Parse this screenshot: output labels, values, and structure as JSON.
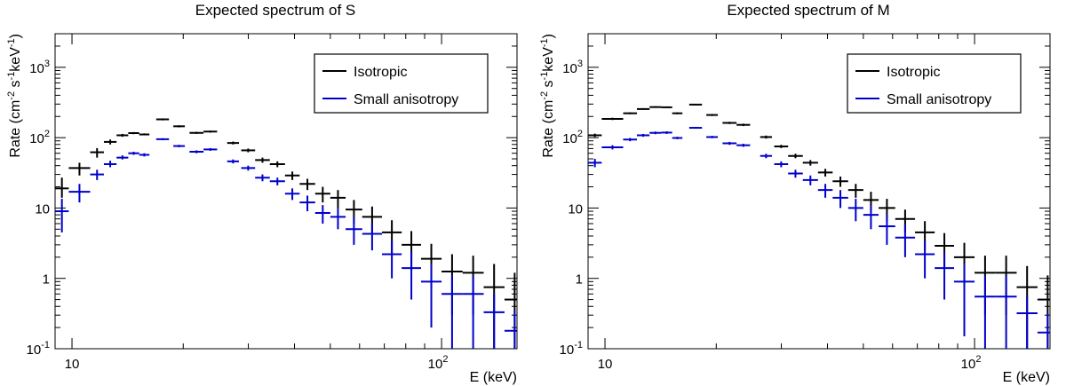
{
  "chart_data": [
    {
      "type": "scatter",
      "title": "Expected spectrum of S",
      "xlabel": "E (keV)",
      "ylabel": {
        "main": "Rate (cm",
        "p1": "-2",
        "s1": " s",
        "p2": "-1",
        "s2": "keV",
        "p3": "-1",
        "close": ")"
      },
      "xscale": "log",
      "yscale": "log",
      "xlim": [
        9,
        160
      ],
      "ylim": [
        0.1,
        3000
      ],
      "xticks": [
        {
          "label": "10"
        },
        {
          "label": "10",
          "exp": "2"
        }
      ],
      "yticks": [
        {
          "label": "10",
          "exp": "-1"
        },
        {
          "label": "1"
        },
        {
          "label": "10"
        },
        {
          "label": "10",
          "exp": "2"
        },
        {
          "label": "10",
          "exp": "3"
        }
      ],
      "legend": {
        "position": "top-right",
        "entries": [
          {
            "label": "Isotropic",
            "color": "#000000"
          },
          {
            "label": "Small anisotropy",
            "color": "#0000cc"
          }
        ]
      },
      "bins": [
        [
          9.0,
          9.8
        ],
        [
          9.8,
          11.2
        ],
        [
          11.2,
          12.2
        ],
        [
          12.2,
          13.2
        ],
        [
          13.2,
          14.2
        ],
        [
          14.2,
          15.2
        ],
        [
          15.2,
          16.2
        ],
        [
          16.9,
          18.3
        ],
        [
          18.8,
          20.2
        ],
        [
          20.8,
          22.7
        ],
        [
          22.7,
          24.7
        ],
        [
          26.3,
          28.3
        ],
        [
          28.7,
          31.3
        ],
        [
          31.3,
          34.3
        ],
        [
          34.3,
          37.7
        ],
        [
          37.7,
          41.3
        ],
        [
          41.3,
          45.5
        ],
        [
          45.5,
          50
        ],
        [
          50,
          55
        ],
        [
          55,
          61
        ],
        [
          61,
          69
        ],
        [
          69,
          78
        ],
        [
          78,
          88
        ],
        [
          88,
          100
        ],
        [
          100,
          114
        ],
        [
          114,
          130
        ],
        [
          130,
          148
        ],
        [
          148,
          168
        ]
      ],
      "series": [
        {
          "name": "Isotropic",
          "color": "#000000",
          "values": [
            19,
            37,
            62,
            87,
            108,
            116,
            111,
            182,
            145,
            117,
            122,
            84,
            66,
            48,
            42,
            29,
            22,
            16,
            14,
            9.5,
            7.5,
            4.5,
            3,
            1.9,
            1.25,
            1.2,
            0.75,
            0.5
          ],
          "errors": [
            [
              14,
              27
            ],
            [
              29,
              44
            ],
            [
              52,
              71
            ],
            [
              80,
              94
            ],
            [
              103,
              113
            ],
            [
              112,
              120
            ],
            [
              108,
              115
            ],
            [
              176,
              188
            ],
            [
              140,
              150
            ],
            [
              113,
              121
            ],
            [
              118,
              126
            ],
            [
              80,
              88
            ],
            [
              62,
              70
            ],
            [
              44,
              52
            ],
            [
              38,
              46
            ],
            [
              25,
              33
            ],
            [
              18,
              26
            ],
            [
              12,
              20
            ],
            [
              10,
              18
            ],
            [
              6,
              13
            ],
            [
              4.5,
              10.5
            ],
            [
              2.3,
              6.7
            ],
            [
              1.3,
              4.7
            ],
            [
              0.7,
              3.1
            ],
            [
              0.3,
              2.2
            ],
            [
              0.3,
              2.1
            ],
            [
              0.1,
              1.6
            ],
            [
              0.1,
              1.2
            ]
          ]
        },
        {
          "name": "Small anisotropy",
          "color": "#0000cc",
          "values": [
            9,
            17,
            30,
            42,
            52,
            60,
            57,
            95,
            76,
            63,
            68,
            46,
            37,
            27,
            24,
            16,
            12,
            8.5,
            7.5,
            5,
            4.3,
            2.2,
            1.4,
            0.9,
            0.6,
            0.6,
            0.33,
            0.18
          ],
          "errors": [
            [
              4.5,
              13.5
            ],
            [
              12,
              22
            ],
            [
              25,
              35
            ],
            [
              38,
              47
            ],
            [
              49,
              56
            ],
            [
              57,
              63
            ],
            [
              54,
              60
            ],
            [
              92,
              98
            ],
            [
              73,
              79
            ],
            [
              60,
              66
            ],
            [
              65,
              71
            ],
            [
              43,
              49
            ],
            [
              34,
              40
            ],
            [
              24,
              30
            ],
            [
              21,
              27
            ],
            [
              13,
              19
            ],
            [
              9,
              15
            ],
            [
              6,
              11
            ],
            [
              5,
              10
            ],
            [
              3,
              7.5
            ],
            [
              2.5,
              6.1
            ],
            [
              1,
              3.4
            ],
            [
              0.5,
              2.4
            ],
            [
              0.2,
              1.6
            ],
            [
              0.1,
              1.1
            ],
            [
              0.1,
              1.1
            ],
            [
              0.1,
              0.6
            ],
            [
              0.1,
              0.35
            ]
          ]
        }
      ]
    },
    {
      "type": "scatter",
      "title": "Expected spectrum of M",
      "xlabel": "E (keV)",
      "ylabel": {
        "main": "Rate (cm",
        "p1": "-2",
        "s1": " s",
        "p2": "-1",
        "s2": "keV",
        "p3": "-1",
        "close": ")"
      },
      "xscale": "log",
      "yscale": "log",
      "xlim": [
        9,
        160
      ],
      "ylim": [
        0.1,
        3000
      ],
      "xticks": [
        {
          "label": "10"
        },
        {
          "label": "10",
          "exp": "2"
        }
      ],
      "yticks": [
        {
          "label": "10",
          "exp": "-1"
        },
        {
          "label": "1"
        },
        {
          "label": "10"
        },
        {
          "label": "10",
          "exp": "2"
        },
        {
          "label": "10",
          "exp": "3"
        }
      ],
      "legend": {
        "position": "top-right",
        "entries": [
          {
            "label": "Isotropic",
            "color": "#000000"
          },
          {
            "label": "Small anisotropy",
            "color": "#0000cc"
          }
        ]
      },
      "bins": [
        [
          9.0,
          9.8
        ],
        [
          9.8,
          11.2
        ],
        [
          11.2,
          12.2
        ],
        [
          12.2,
          13.2
        ],
        [
          13.2,
          14.2
        ],
        [
          14.2,
          15.2
        ],
        [
          15.2,
          16.2
        ],
        [
          16.9,
          18.3
        ],
        [
          18.8,
          20.2
        ],
        [
          20.8,
          22.7
        ],
        [
          22.7,
          24.7
        ],
        [
          26.3,
          28.3
        ],
        [
          28.7,
          31.3
        ],
        [
          31.3,
          34.3
        ],
        [
          34.3,
          37.7
        ],
        [
          37.7,
          41.3
        ],
        [
          41.3,
          45.5
        ],
        [
          45.5,
          50
        ],
        [
          50,
          55
        ],
        [
          55,
          61
        ],
        [
          61,
          69
        ],
        [
          69,
          78
        ],
        [
          78,
          88
        ],
        [
          88,
          100
        ],
        [
          100,
          114
        ],
        [
          114,
          130
        ],
        [
          130,
          148
        ],
        [
          148,
          168
        ]
      ],
      "series": [
        {
          "name": "Isotropic",
          "color": "#000000",
          "values": [
            108,
            185,
            222,
            255,
            272,
            270,
            222,
            295,
            210,
            162,
            152,
            102,
            75,
            55,
            44,
            32,
            24,
            18,
            13,
            10,
            7,
            4.5,
            2.9,
            2,
            1.2,
            1.2,
            0.75,
            0.5
          ],
          "errors": [
            [
              102,
              114
            ],
            [
              178,
              192
            ],
            [
              215,
              229
            ],
            [
              248,
              262
            ],
            [
              265,
              279
            ],
            [
              263,
              277
            ],
            [
              215,
              229
            ],
            [
              288,
              302
            ],
            [
              203,
              217
            ],
            [
              156,
              168
            ],
            [
              146,
              158
            ],
            [
              97,
              107
            ],
            [
              71,
              79
            ],
            [
              51,
              59
            ],
            [
              40,
              48
            ],
            [
              28,
              36
            ],
            [
              20,
              28
            ],
            [
              14,
              22
            ],
            [
              9,
              17
            ],
            [
              6.5,
              13.5
            ],
            [
              4.5,
              9.5
            ],
            [
              2.5,
              6.5
            ],
            [
              1.4,
              4.4
            ],
            [
              0.8,
              3.2
            ],
            [
              0.3,
              2.1
            ],
            [
              0.3,
              2.1
            ],
            [
              0.1,
              1.5
            ],
            [
              0.1,
              1.1
            ]
          ]
        },
        {
          "name": "Small anisotropy",
          "color": "#0000cc",
          "values": [
            44,
            73,
            94,
            108,
            117,
            118,
            99,
            138,
            102,
            83,
            78,
            55,
            42,
            31,
            25,
            18,
            14,
            10,
            8,
            5.5,
            3.8,
            2.2,
            1.4,
            0.9,
            0.55,
            0.55,
            0.32,
            0.17
          ],
          "errors": [
            [
              38,
              50
            ],
            [
              68,
              78
            ],
            [
              89,
              99
            ],
            [
              103,
              113
            ],
            [
              112,
              122
            ],
            [
              113,
              123
            ],
            [
              95,
              103
            ],
            [
              134,
              142
            ],
            [
              98,
              106
            ],
            [
              79,
              87
            ],
            [
              74,
              82
            ],
            [
              51,
              59
            ],
            [
              38,
              46
            ],
            [
              27,
              35
            ],
            [
              21,
              29
            ],
            [
              14,
              22
            ],
            [
              10,
              18
            ],
            [
              6.5,
              13.5
            ],
            [
              5,
              11
            ],
            [
              3,
              8
            ],
            [
              2,
              5.8
            ],
            [
              1,
              3.4
            ],
            [
              0.5,
              2.3
            ],
            [
              0.15,
              1.6
            ],
            [
              0.1,
              1.1
            ],
            [
              0.1,
              1.1
            ],
            [
              0.1,
              0.55
            ],
            [
              0.1,
              0.32
            ]
          ]
        }
      ]
    }
  ]
}
